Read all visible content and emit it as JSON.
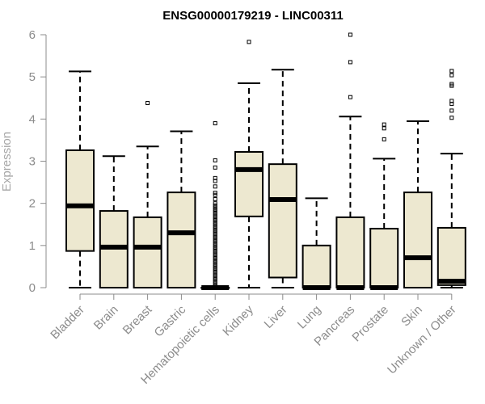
{
  "chart_data": {
    "type": "boxplot",
    "title": "ENSG00000179219 - LINC00311",
    "xlabel": "",
    "ylabel": "Expression",
    "ylim": [
      0,
      6
    ],
    "yticks": [
      0,
      1,
      2,
      3,
      4,
      5,
      6
    ],
    "grid": false,
    "box_fill": "#ede8d0",
    "categories": [
      "Bladder",
      "Brain",
      "Breast",
      "Gastric",
      "Hematopoietic cells",
      "Kidney",
      "Liver",
      "Lung",
      "Pancreas",
      "Prostate",
      "Skin",
      "Unknown / Other"
    ],
    "boxes": [
      {
        "whisker_low": 0,
        "q1": 0.87,
        "median": 1.94,
        "q3": 3.26,
        "whisker_high": 5.13,
        "outliers": []
      },
      {
        "whisker_low": 0,
        "q1": 0,
        "median": 0.96,
        "q3": 1.82,
        "whisker_high": 3.12,
        "outliers": []
      },
      {
        "whisker_low": 0,
        "q1": 0,
        "median": 0.96,
        "q3": 1.67,
        "whisker_high": 3.35,
        "outliers": [
          4.38
        ]
      },
      {
        "whisker_low": 0,
        "q1": 0,
        "median": 1.3,
        "q3": 2.26,
        "whisker_high": 3.71,
        "outliers": []
      },
      {
        "whisker_low": 0,
        "q1": 0,
        "median": 0,
        "q3": 0,
        "whisker_high": 0,
        "outliers": [
          3.9,
          3.02,
          2.85,
          2.6,
          2.53,
          2.4,
          2.25,
          2.2,
          2.1,
          2.0,
          1.95,
          1.9,
          1.85,
          1.8,
          1.75,
          1.7,
          1.65,
          1.6,
          1.55,
          1.5,
          1.45,
          1.4,
          1.35,
          1.3,
          1.25,
          1.2,
          1.15,
          1.1,
          1.05,
          1.0,
          0.95,
          0.9,
          0.85,
          0.8,
          0.75,
          0.7,
          0.65,
          0.6,
          0.55,
          0.5,
          0.45,
          0.4,
          0.35,
          0.3,
          0.25,
          0.2,
          0.15,
          0.1,
          0.05
        ]
      },
      {
        "whisker_low": 0,
        "q1": 1.69,
        "median": 2.8,
        "q3": 3.22,
        "whisker_high": 4.85,
        "outliers": [
          5.83
        ]
      },
      {
        "whisker_low": 0,
        "q1": 0.24,
        "median": 2.09,
        "q3": 2.93,
        "whisker_high": 5.17,
        "outliers": []
      },
      {
        "whisker_low": 0,
        "q1": 0,
        "median": 0,
        "q3": 1.0,
        "whisker_high": 2.12,
        "outliers": []
      },
      {
        "whisker_low": 0,
        "q1": 0,
        "median": 0,
        "q3": 1.67,
        "whisker_high": 4.06,
        "outliers": [
          6.0,
          5.35,
          4.52
        ]
      },
      {
        "whisker_low": 0,
        "q1": 0,
        "median": 0,
        "q3": 1.4,
        "whisker_high": 3.06,
        "outliers": [
          3.87,
          3.78,
          3.52
        ]
      },
      {
        "whisker_low": 0,
        "q1": 0,
        "median": 0.71,
        "q3": 2.26,
        "whisker_high": 3.95,
        "outliers": []
      },
      {
        "whisker_low": 0,
        "q1": 0.06,
        "median": 0.15,
        "q3": 1.42,
        "whisker_high": 3.18,
        "outliers": [
          5.14,
          5.04,
          4.83,
          4.79,
          4.43,
          4.36,
          4.2,
          4.03
        ]
      }
    ]
  }
}
